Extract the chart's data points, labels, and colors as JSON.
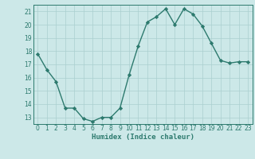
{
  "x": [
    0,
    1,
    2,
    3,
    4,
    5,
    6,
    7,
    8,
    9,
    10,
    11,
    12,
    13,
    14,
    15,
    16,
    17,
    18,
    19,
    20,
    21,
    22,
    23
  ],
  "y": [
    17.8,
    16.6,
    15.7,
    13.7,
    13.7,
    12.9,
    12.7,
    13.0,
    13.0,
    13.7,
    16.2,
    18.4,
    20.2,
    20.6,
    21.2,
    20.0,
    21.2,
    20.8,
    19.9,
    18.6,
    17.3,
    17.1,
    17.2,
    17.2
  ],
  "line_color": "#2d7a6e",
  "bg_color": "#cce8e8",
  "grid_color": "#aacfcf",
  "xlabel": "Humidex (Indice chaleur)",
  "xlim": [
    -0.5,
    23.5
  ],
  "ylim": [
    12.5,
    21.5
  ],
  "yticks": [
    13,
    14,
    15,
    16,
    17,
    18,
    19,
    20,
    21
  ],
  "xticks": [
    0,
    1,
    2,
    3,
    4,
    5,
    6,
    7,
    8,
    9,
    10,
    11,
    12,
    13,
    14,
    15,
    16,
    17,
    18,
    19,
    20,
    21,
    22,
    23
  ],
  "marker": "D",
  "markersize": 2.2,
  "linewidth": 1.0,
  "tick_fontsize": 5.5,
  "xlabel_fontsize": 6.5
}
